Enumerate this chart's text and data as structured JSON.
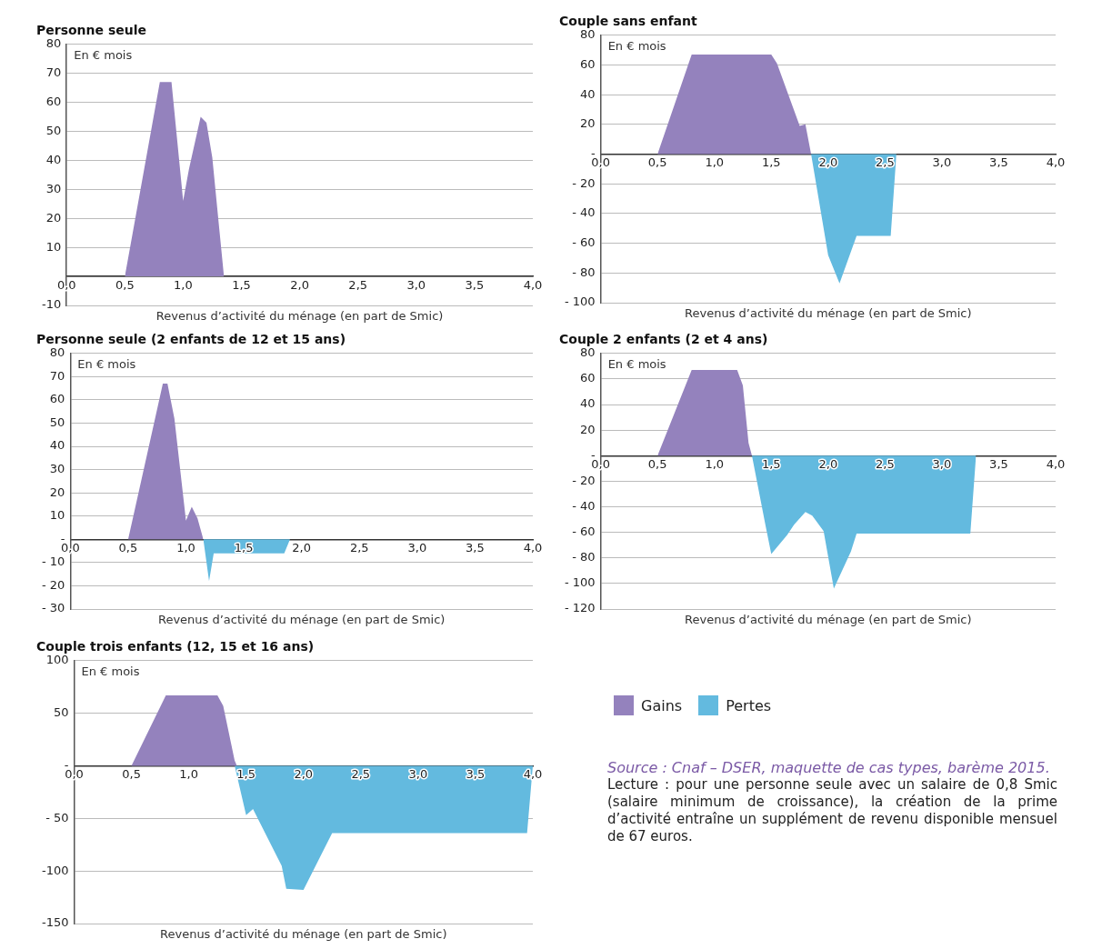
{
  "chart_data": [
    {
      "type": "area",
      "title": "Personne seule",
      "xlabel": "Revenus d’activité du ménage (en part de Smic)",
      "ylabel": "En € mois",
      "xlim": [
        0,
        4
      ],
      "ylim": [
        -10,
        80
      ],
      "xticks": [
        {
          "value": 0,
          "label": "0,0"
        },
        {
          "value": 0.5,
          "label": "0,5"
        },
        {
          "value": 1,
          "label": "1,0"
        },
        {
          "value": 1.5,
          "label": "1,5"
        },
        {
          "value": 2,
          "label": "2,0"
        },
        {
          "value": 2.5,
          "label": "2,5"
        },
        {
          "value": 3,
          "label": "3,0"
        },
        {
          "value": 3.5,
          "label": "3,5"
        },
        {
          "value": 4,
          "label": "4,0"
        }
      ],
      "yticks": [
        -10,
        {
          "value": 0,
          "label": null
        },
        10,
        20,
        30,
        40,
        50,
        60,
        70,
        80
      ],
      "grid": "y",
      "series": [
        {
          "color": "#9482bd",
          "x": [
            0.5,
            0.8,
            0.9,
            1.0,
            1.05,
            1.15,
            1.2,
            1.25,
            1.35
          ],
          "values": [
            0,
            67,
            67,
            26,
            37,
            55,
            53,
            41,
            0
          ]
        }
      ]
    },
    {
      "type": "area",
      "title": "Couple sans enfant",
      "xlabel": "Revenus d’activité du ménage (en part de Smic)",
      "ylabel": "En € mois",
      "xlim": [
        0,
        4
      ],
      "ylim": [
        -100,
        80
      ],
      "xticks": [
        {
          "value": 0,
          "label": "0,0"
        },
        {
          "value": 0.5,
          "label": "0,5"
        },
        {
          "value": 1,
          "label": "1,0"
        },
        {
          "value": 1.5,
          "label": "1,5"
        },
        {
          "value": 2,
          "label": "2,0"
        },
        {
          "value": 2.5,
          "label": "2,5"
        },
        {
          "value": 3,
          "label": "3,0"
        },
        {
          "value": 3.5,
          "label": "3,5"
        },
        {
          "value": 4,
          "label": "4,0"
        }
      ],
      "yticks": [
        {
          "value": -100,
          "label": "- 100"
        },
        {
          "value": -80,
          "label": "- 80"
        },
        {
          "value": -60,
          "label": "- 60"
        },
        {
          "value": -40,
          "label": "- 40"
        },
        {
          "value": -20,
          "label": "- 20"
        },
        {
          "value": 0,
          "label": "-"
        },
        20,
        40,
        60,
        80
      ],
      "grid": "y",
      "series": [
        {
          "color": "#9482bd",
          "x": [
            0.5,
            0.8,
            1.5,
            1.55,
            1.75,
            1.8,
            1.85
          ],
          "values": [
            0,
            67,
            67,
            61,
            19,
            20,
            0
          ]
        },
        {
          "color": "#63badf",
          "x": [
            1.85,
            2.0,
            2.1,
            2.25,
            2.55,
            2.6
          ],
          "values": [
            0,
            -68,
            -87,
            -55,
            -55,
            0
          ]
        }
      ]
    },
    {
      "type": "area",
      "title": "Personne seule (2 enfants de 12 et 15 ans)",
      "xlabel": "Revenus d’activité du ménage (en part de Smic)",
      "ylabel": "En € mois",
      "xlim": [
        0,
        4
      ],
      "ylim": [
        -30,
        80
      ],
      "xticks": [
        {
          "value": 0,
          "label": "0,0"
        },
        {
          "value": 0.5,
          "label": "0,5"
        },
        {
          "value": 1,
          "label": "1,0"
        },
        {
          "value": 1.5,
          "label": "1,5"
        },
        {
          "value": 2,
          "label": "2,0"
        },
        {
          "value": 2.5,
          "label": "2,5"
        },
        {
          "value": 3,
          "label": "3,0"
        },
        {
          "value": 3.5,
          "label": "3,5"
        },
        {
          "value": 4,
          "label": "4,0"
        }
      ],
      "yticks": [
        {
          "value": -30,
          "label": "- 30"
        },
        {
          "value": -20,
          "label": "- 20"
        },
        {
          "value": -10,
          "label": "- 10"
        },
        {
          "value": 0,
          "label": "-"
        },
        10,
        20,
        30,
        40,
        50,
        60,
        70,
        80
      ],
      "grid": "y",
      "series": [
        {
          "color": "#9482bd",
          "x": [
            0.5,
            0.8,
            0.84,
            0.9,
            1.0,
            1.05,
            1.1,
            1.15
          ],
          "values": [
            0,
            67,
            67,
            52,
            8,
            14,
            9,
            0
          ]
        },
        {
          "color": "#63badf",
          "x": [
            1.15,
            1.2,
            1.24,
            1.85,
            1.9
          ],
          "values": [
            0,
            -18,
            -6,
            -6,
            0
          ]
        }
      ]
    },
    {
      "type": "area",
      "title": "Couple 2 enfants (2 et 4 ans)",
      "xlabel": "Revenus d’activité du ménage (en part de Smic)",
      "ylabel": "En € mois",
      "xlim": [
        0,
        4
      ],
      "ylim": [
        -120,
        80
      ],
      "xticks": [
        {
          "value": 0,
          "label": "0,0"
        },
        {
          "value": 0.5,
          "label": "0,5"
        },
        {
          "value": 1,
          "label": "1,0"
        },
        {
          "value": 1.5,
          "label": "1,5"
        },
        {
          "value": 2,
          "label": "2,0"
        },
        {
          "value": 2.5,
          "label": "2,5"
        },
        {
          "value": 3,
          "label": "3,0"
        },
        {
          "value": 3.5,
          "label": "3,5"
        },
        {
          "value": 4,
          "label": "4,0"
        }
      ],
      "yticks": [
        {
          "value": -120,
          "label": "- 120"
        },
        {
          "value": -100,
          "label": "- 100"
        },
        {
          "value": -80,
          "label": "- 80"
        },
        {
          "value": -60,
          "label": "- 60"
        },
        {
          "value": -40,
          "label": "- 40"
        },
        {
          "value": -20,
          "label": "- 20"
        },
        {
          "value": 0,
          "label": "-"
        },
        20,
        40,
        60,
        80
      ],
      "grid": "y",
      "series": [
        {
          "color": "#9482bd",
          "x": [
            0.5,
            0.8,
            1.2,
            1.25,
            1.3,
            1.33
          ],
          "values": [
            0,
            67,
            67,
            55,
            10,
            0
          ]
        },
        {
          "color": "#63badf",
          "x": [
            1.33,
            1.45,
            1.5,
            1.64,
            1.7,
            1.8,
            1.86,
            1.96,
            2.05,
            2.2,
            2.25,
            3.25,
            3.3
          ],
          "values": [
            0,
            -55,
            -77,
            -62,
            -54,
            -44,
            -47,
            -59,
            -104,
            -75,
            -61,
            -61,
            0
          ]
        }
      ]
    },
    {
      "type": "area",
      "title": "Couple trois enfants (12, 15 et 16 ans)",
      "xlabel": "Revenus d’activité du ménage (en part de Smic)",
      "ylabel": "En € mois",
      "xlim": [
        0,
        4
      ],
      "ylim": [
        -150,
        100
      ],
      "xticks": [
        {
          "value": 0,
          "label": "0,0"
        },
        {
          "value": 0.5,
          "label": "0,5"
        },
        {
          "value": 1,
          "label": "1,0"
        },
        {
          "value": 1.5,
          "label": "1,5"
        },
        {
          "value": 2,
          "label": "2,0"
        },
        {
          "value": 2.5,
          "label": "2,5"
        },
        {
          "value": 3,
          "label": "3,0"
        },
        {
          "value": 3.5,
          "label": "3,5"
        },
        {
          "value": 4,
          "label": "4,0"
        }
      ],
      "yticks": [
        -150,
        -100,
        {
          "value": -50,
          "label": "- 50"
        },
        {
          "value": 0,
          "label": "-"
        },
        50,
        100
      ],
      "grid": "y",
      "legend": "right",
      "series": [
        {
          "name": "Gains",
          "color": "#9482bd",
          "x": [
            0.5,
            0.8,
            1.25,
            1.3,
            1.4,
            1.42
          ],
          "values": [
            0,
            67,
            67,
            57,
            5,
            0
          ]
        },
        {
          "name": "Pertes",
          "color": "#63badf",
          "x": [
            1.4,
            1.5,
            1.56,
            1.81,
            1.85,
            2.0,
            2.25,
            3.95,
            4.0
          ],
          "values": [
            0,
            -47,
            -41,
            -95,
            -117,
            -118,
            -64,
            -64,
            0
          ]
        }
      ]
    },
    {
      "type": "other",
      "annotations": [
        "Source : Cnaf – DSER, maquette de cas types, barème 2015.",
        "Lecture : pour une personne seule avec un salaire de 0,8 Smic (salaire minimum de croissance), la création de la prime d’activité entraîne un supplément de revenu disponible mensuel de 67 euros."
      ]
    }
  ]
}
